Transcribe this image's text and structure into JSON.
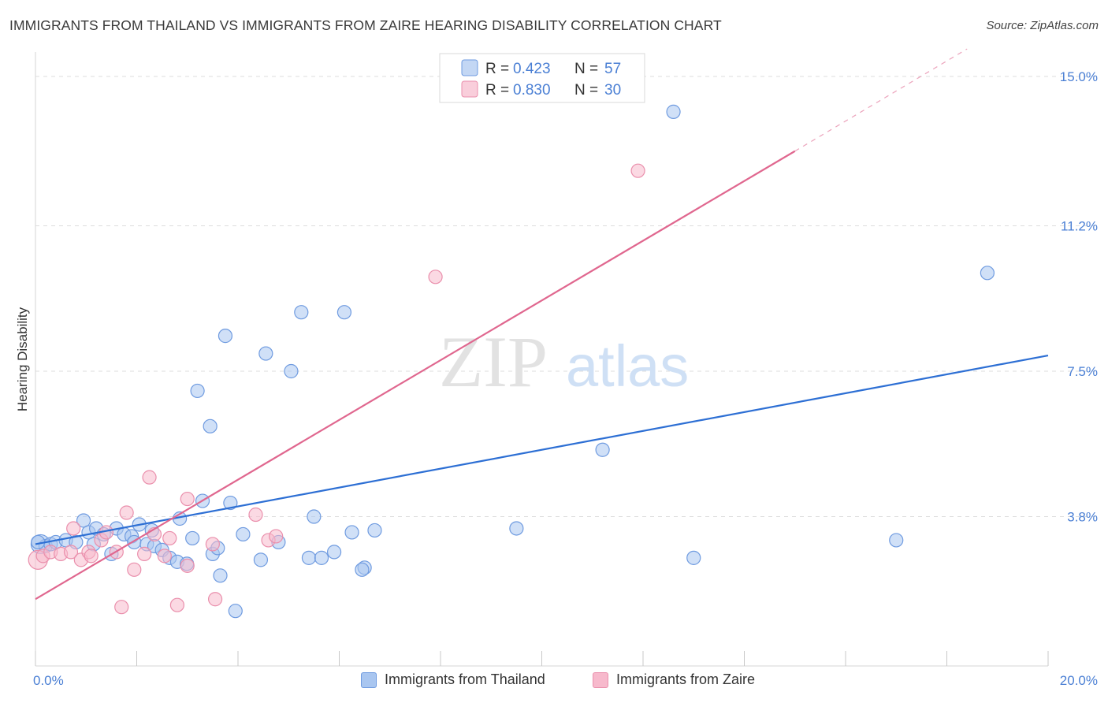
{
  "title": "IMMIGRANTS FROM THAILAND VS IMMIGRANTS FROM ZAIRE HEARING DISABILITY CORRELATION CHART",
  "source": "Source: ZipAtlas.com",
  "watermark": {
    "zip": "ZIP",
    "atlas": "atlas"
  },
  "colors": {
    "thailand_fill": "#a9c6f0",
    "thailand_stroke": "#6f9be0",
    "thailand_line": "#2d6fd4",
    "zaire_fill": "#f7b9cc",
    "zaire_stroke": "#ea8fac",
    "zaire_line": "#e0678f",
    "axis_text": "#4a7fd4",
    "grid": "#dddddd"
  },
  "legend_top": {
    "rows": [
      {
        "series": "thailand",
        "r_label": "R =",
        "r_value": "0.423",
        "n_label": "N =",
        "n_value": "57"
      },
      {
        "series": "zaire",
        "r_label": "R =",
        "r_value": "0.830",
        "n_label": "N =",
        "n_value": "30"
      }
    ]
  },
  "legend_bottom": [
    {
      "series": "thailand",
      "label": "Immigrants from Thailand"
    },
    {
      "series": "zaire",
      "label": "Immigrants from Zaire"
    }
  ],
  "chart_data": {
    "type": "scatter",
    "title": "IMMIGRANTS FROM THAILAND VS IMMIGRANTS FROM ZAIRE HEARING DISABILITY CORRELATION CHART",
    "xlabel": "",
    "ylabel": "Hearing Disability",
    "xlim": [
      0,
      20
    ],
    "ylim": [
      0,
      15
    ],
    "x_tick_labels": [
      "0.0%",
      "20.0%"
    ],
    "y_ticks": [
      3.8,
      7.5,
      11.2,
      15.0
    ],
    "y_tick_labels": [
      "3.8%",
      "7.5%",
      "11.2%",
      "15.0%"
    ],
    "series": [
      {
        "name": "Immigrants from Thailand",
        "key": "thailand",
        "r": 0.423,
        "n": 57,
        "trend": {
          "x0": 0,
          "y0": 3.1,
          "x1": 20,
          "y1": 7.9
        },
        "points": [
          [
            0.1,
            3.1
          ],
          [
            0.2,
            3.05
          ],
          [
            0.3,
            3.1
          ],
          [
            0.4,
            3.15
          ],
          [
            0.6,
            3.2
          ],
          [
            0.8,
            3.15
          ],
          [
            0.95,
            3.7
          ],
          [
            1.05,
            3.4
          ],
          [
            1.2,
            3.5
          ],
          [
            1.15,
            3.1
          ],
          [
            1.35,
            3.35
          ],
          [
            1.5,
            2.85
          ],
          [
            1.6,
            3.5
          ],
          [
            1.75,
            3.35
          ],
          [
            1.9,
            3.3
          ],
          [
            1.95,
            3.15
          ],
          [
            2.05,
            3.6
          ],
          [
            2.2,
            3.1
          ],
          [
            2.3,
            3.45
          ],
          [
            2.35,
            3.05
          ],
          [
            2.5,
            2.95
          ],
          [
            2.65,
            2.75
          ],
          [
            2.8,
            2.65
          ],
          [
            2.85,
            3.75
          ],
          [
            2.99,
            2.6
          ],
          [
            3.1,
            3.25
          ],
          [
            3.2,
            7.0
          ],
          [
            3.3,
            4.2
          ],
          [
            3.45,
            6.1
          ],
          [
            3.5,
            2.85
          ],
          [
            3.65,
            2.3
          ],
          [
            3.75,
            8.4
          ],
          [
            3.85,
            4.15
          ],
          [
            3.95,
            1.4
          ],
          [
            4.1,
            3.35
          ],
          [
            4.45,
            2.7
          ],
          [
            4.55,
            7.95
          ],
          [
            4.8,
            3.15
          ],
          [
            5.05,
            7.5
          ],
          [
            5.25,
            9.0
          ],
          [
            5.4,
            2.75
          ],
          [
            5.5,
            3.8
          ],
          [
            5.65,
            2.75
          ],
          [
            5.9,
            2.9
          ],
          [
            6.1,
            9.0
          ],
          [
            6.25,
            3.4
          ],
          [
            6.5,
            2.5
          ],
          [
            6.7,
            3.45
          ],
          [
            6.45,
            2.45
          ],
          [
            9.5,
            3.5
          ],
          [
            11.2,
            5.5
          ],
          [
            12.6,
            14.1
          ],
          [
            13.0,
            2.75
          ],
          [
            17.0,
            3.2
          ],
          [
            18.8,
            10.0
          ],
          [
            0.05,
            3.15
          ],
          [
            3.6,
            3.0
          ]
        ]
      },
      {
        "name": "Immigrants from Zaire",
        "key": "zaire",
        "r": 0.83,
        "n": 30,
        "trend": {
          "x0": 0,
          "y0": 1.7,
          "x1": 15,
          "y1": 13.1
        },
        "trend_dashed": {
          "x0": 15,
          "y0": 13.1,
          "x1": 18.4,
          "y1": 15.7
        },
        "points": [
          [
            0.05,
            2.7
          ],
          [
            0.15,
            2.8
          ],
          [
            0.3,
            2.9
          ],
          [
            0.5,
            2.85
          ],
          [
            0.7,
            2.9
          ],
          [
            0.75,
            3.5
          ],
          [
            0.9,
            2.7
          ],
          [
            1.05,
            2.9
          ],
          [
            1.1,
            2.8
          ],
          [
            1.3,
            3.2
          ],
          [
            1.4,
            3.4
          ],
          [
            1.6,
            2.9
          ],
          [
            1.7,
            1.5
          ],
          [
            1.8,
            3.9
          ],
          [
            1.95,
            2.45
          ],
          [
            2.15,
            2.85
          ],
          [
            2.25,
            4.8
          ],
          [
            2.35,
            3.35
          ],
          [
            2.55,
            2.8
          ],
          [
            2.65,
            3.25
          ],
          [
            2.8,
            1.55
          ],
          [
            3.0,
            2.55
          ],
          [
            3.0,
            4.25
          ],
          [
            3.5,
            3.1
          ],
          [
            3.55,
            1.7
          ],
          [
            4.35,
            3.85
          ],
          [
            4.6,
            3.2
          ],
          [
            4.75,
            3.3
          ],
          [
            7.9,
            9.9
          ],
          [
            11.9,
            12.6
          ]
        ]
      }
    ]
  }
}
